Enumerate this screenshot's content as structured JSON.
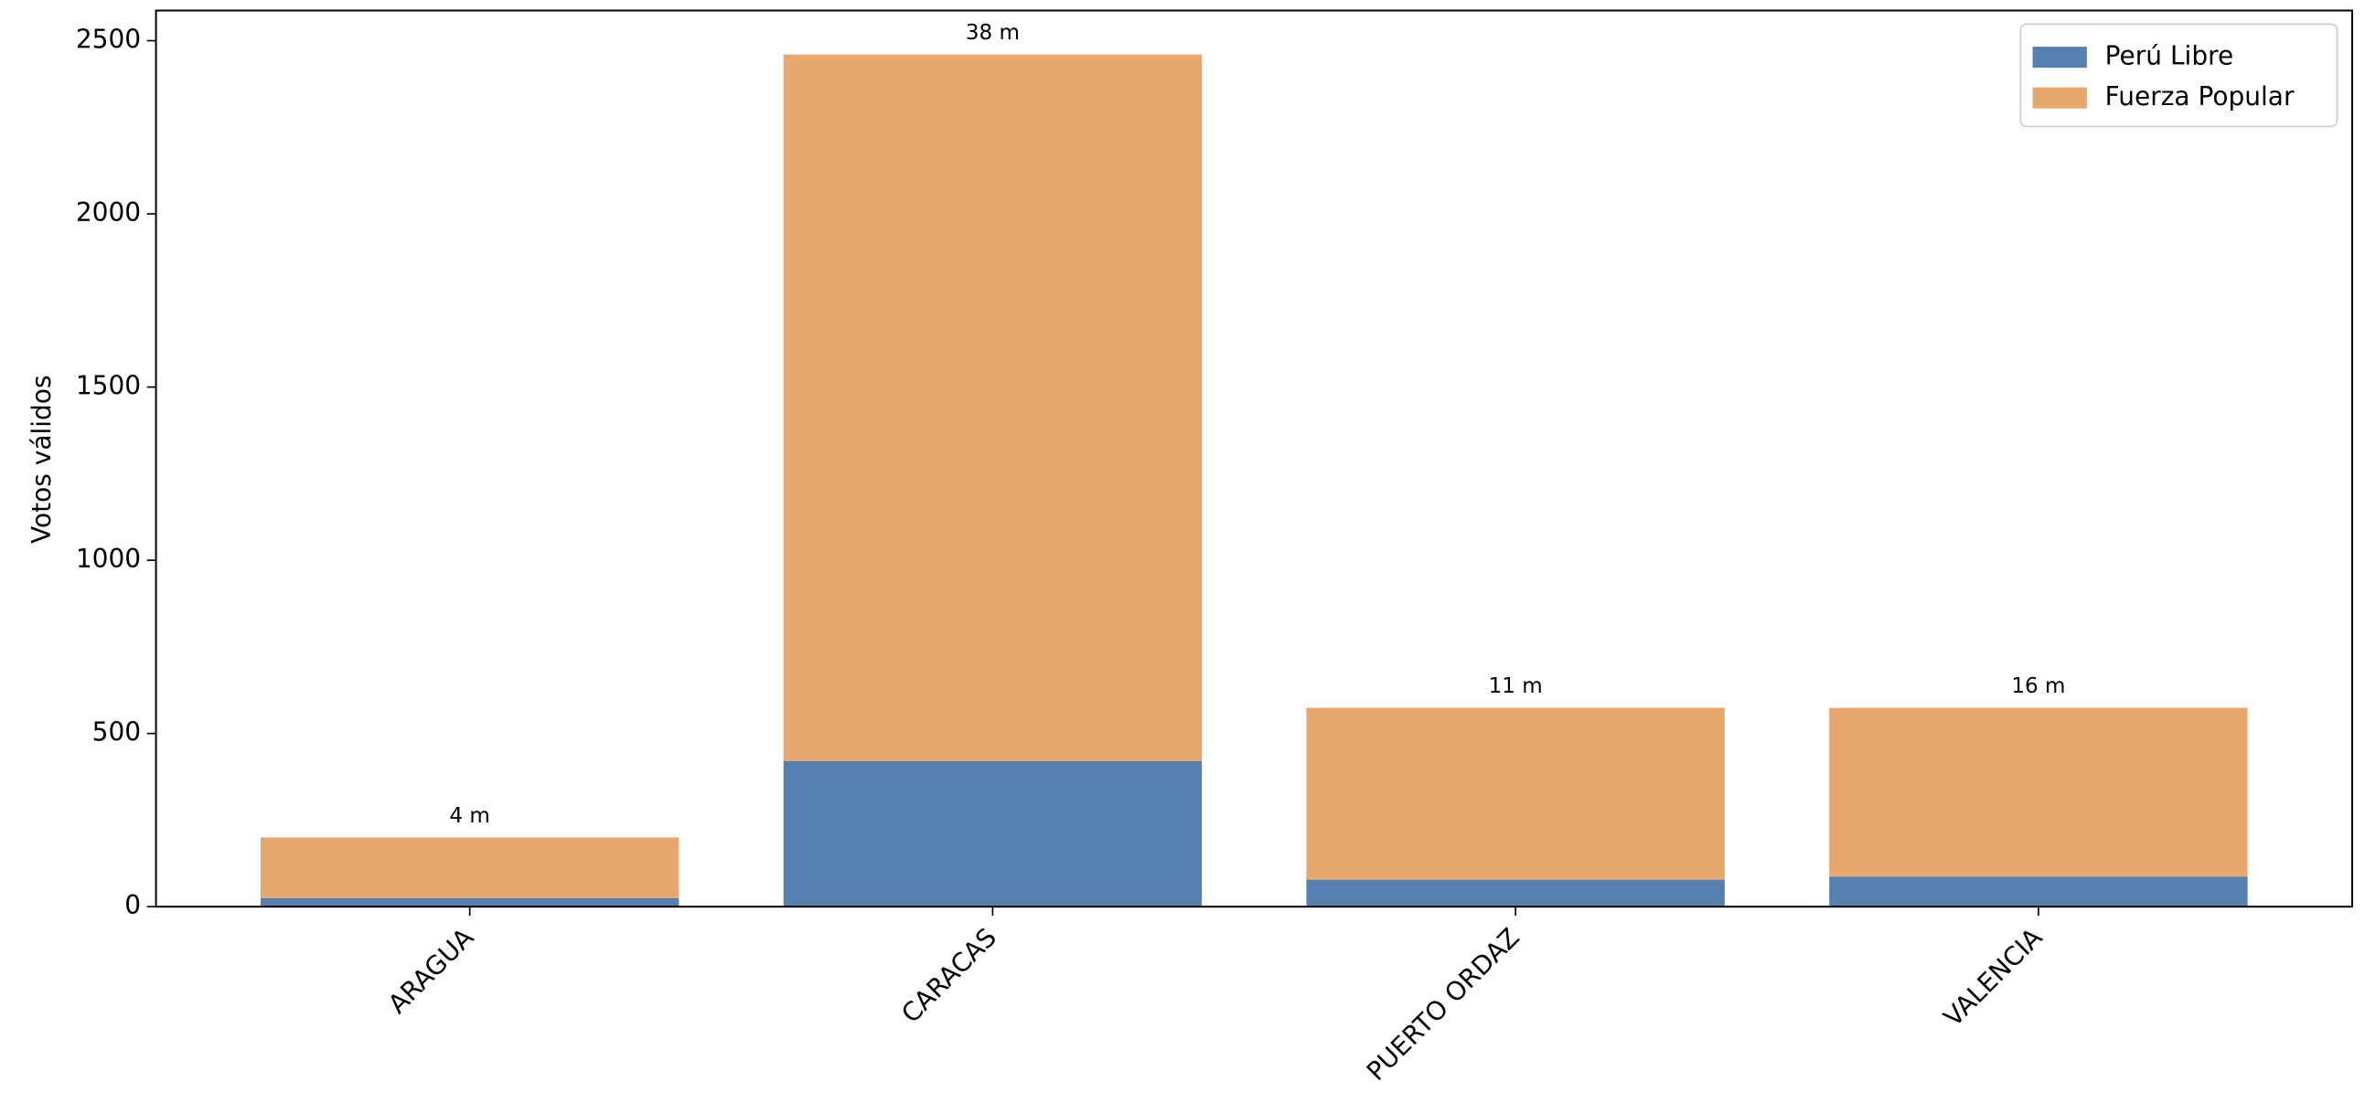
{
  "chart_data": {
    "type": "stacked_bar",
    "y_label": "Votos válidos",
    "categories": [
      "ARAGUA",
      "CARACAS",
      "PUERTO ORDAZ",
      "VALENCIA"
    ],
    "series": [
      {
        "name": "Perú Libre",
        "color": "#5580b0",
        "values": [
          25,
          420,
          78,
          87
        ]
      },
      {
        "name": "Fuerza Popular",
        "color": "#e8a76d",
        "values": [
          175,
          2040,
          496,
          487
        ]
      }
    ],
    "annotations": [
      "4 m",
      "38 m",
      "11 m",
      "16 m"
    ],
    "ylim": [
      0,
      2587
    ],
    "yticks": [
      0,
      500,
      1000,
      1500,
      2000,
      2500
    ],
    "legend": "upper right"
  }
}
